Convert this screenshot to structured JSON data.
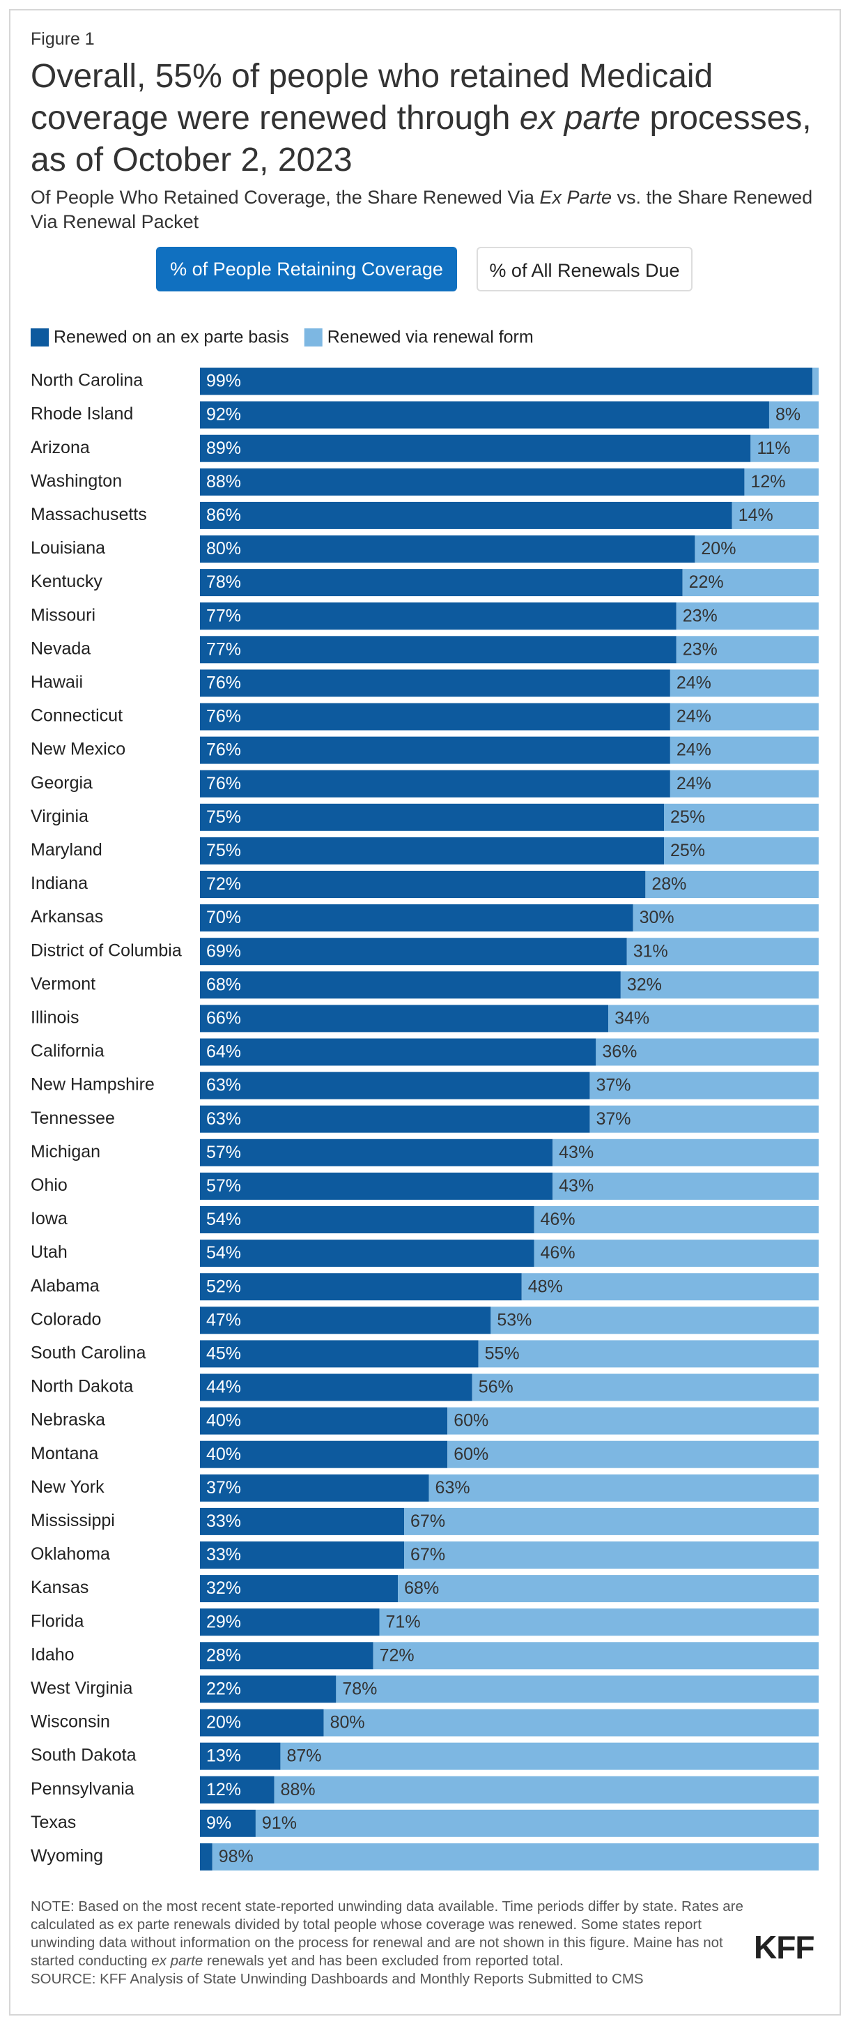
{
  "figure_label": "Figure 1",
  "title": [
    "Overall, 55% of people who retained Medicaid coverage were renewed through ",
    "ex parte",
    " processes, as of October 2, 2023"
  ],
  "subtitle": [
    "Of People Who Retained Coverage, the Share Renewed Via ",
    "Ex Parte",
    " vs. the Share Renewed Via Renewal Packet"
  ],
  "buttons": [
    "% of People Retaining Coverage",
    "% of All Renewals Due"
  ],
  "note": [
    "NOTE: Based on the most recent state-reported unwinding data available. Time periods differ by state. Rates are calculated as ex parte renewals divided by total people whose coverage was renewed. Some states report unwinding data without information on the process for renewal and are not shown in this figure. Maine has not started conducting ",
    "ex parte",
    " renewals yet and has been excluded from reported total."
  ],
  "source": "SOURCE: KFF Analysis of State Unwinding Dashboards and Monthly Reports Submitted to CMS",
  "logo": "KFF",
  "chart_data": {
    "type": "stacked-bar",
    "orientation": "horizontal",
    "xlim": [
      0,
      100
    ],
    "categories": [
      "North Carolina",
      "Rhode Island",
      "Arizona",
      "Washington",
      "Massachusetts",
      "Louisiana",
      "Kentucky",
      "Missouri",
      "Nevada",
      "Hawaii",
      "Connecticut",
      "New Mexico",
      "Georgia",
      "Virginia",
      "Maryland",
      "Indiana",
      "Arkansas",
      "District of Columbia",
      "Vermont",
      "Illinois",
      "California",
      "New Hampshire",
      "Tennessee",
      "Michigan",
      "Ohio",
      "Iowa",
      "Utah",
      "Alabama",
      "Colorado",
      "South Carolina",
      "North Dakota",
      "Nebraska",
      "Montana",
      "New York",
      "Mississippi",
      "Oklahoma",
      "Kansas",
      "Florida",
      "Idaho",
      "West Virginia",
      "Wisconsin",
      "South Dakota",
      "Pennsylvania",
      "Texas",
      "Wyoming"
    ],
    "series": [
      {
        "name": "Renewed on an ex parte basis",
        "color": "#0d5a9e",
        "values": [
          99,
          92,
          89,
          88,
          86,
          80,
          78,
          77,
          77,
          76,
          76,
          76,
          76,
          75,
          75,
          72,
          70,
          69,
          68,
          66,
          64,
          63,
          63,
          57,
          57,
          54,
          54,
          52,
          47,
          45,
          44,
          40,
          40,
          37,
          33,
          33,
          32,
          29,
          28,
          22,
          20,
          13,
          12,
          9,
          2
        ],
        "value_labels": [
          "99%",
          "92%",
          "89%",
          "88%",
          "86%",
          "80%",
          "78%",
          "77%",
          "77%",
          "76%",
          "76%",
          "76%",
          "76%",
          "75%",
          "75%",
          "72%",
          "70%",
          "69%",
          "68%",
          "66%",
          "64%",
          "63%",
          "63%",
          "57%",
          "57%",
          "54%",
          "54%",
          "52%",
          "47%",
          "45%",
          "44%",
          "40%",
          "40%",
          "37%",
          "33%",
          "33%",
          "32%",
          "29%",
          "28%",
          "22%",
          "20%",
          "13%",
          "12%",
          "9%",
          null
        ]
      },
      {
        "name": "Renewed via renewal form",
        "color": "#7db7e2",
        "values": [
          1,
          8,
          11,
          12,
          14,
          20,
          22,
          23,
          23,
          24,
          24,
          24,
          24,
          25,
          25,
          28,
          30,
          31,
          32,
          34,
          36,
          37,
          37,
          43,
          43,
          46,
          46,
          48,
          53,
          55,
          56,
          60,
          60,
          63,
          67,
          67,
          68,
          71,
          72,
          78,
          80,
          87,
          88,
          91,
          98
        ],
        "value_labels": [
          null,
          "8%",
          "11%",
          "12%",
          "14%",
          "20%",
          "22%",
          "23%",
          "23%",
          "24%",
          "24%",
          "24%",
          "24%",
          "25%",
          "25%",
          "28%",
          "30%",
          "31%",
          "32%",
          "34%",
          "36%",
          "37%",
          "37%",
          "43%",
          "43%",
          "46%",
          "46%",
          "48%",
          "53%",
          "55%",
          "56%",
          "60%",
          "60%",
          "63%",
          "67%",
          "67%",
          "68%",
          "71%",
          "72%",
          "78%",
          "80%",
          "87%",
          "88%",
          "91%",
          "98%"
        ]
      }
    ]
  }
}
